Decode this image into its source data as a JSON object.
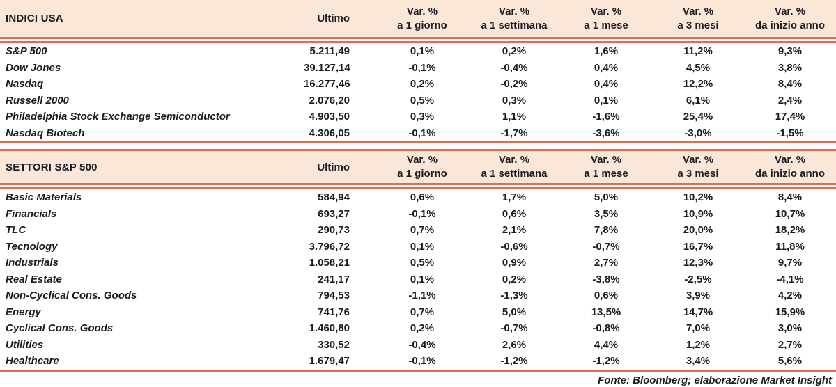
{
  "colors": {
    "header_background": "#fae7d8",
    "rule": "#e9694f",
    "text": "#1b1b22",
    "page_background": "#ffffff"
  },
  "columns": {
    "ultimo_label": "Ultimo",
    "var_label": "Var. %",
    "periods": [
      "a 1 giorno",
      "a 1 settimana",
      "a 1 mese",
      "a 3 mesi",
      "da inizio anno"
    ]
  },
  "tables": [
    {
      "title": "INDICI USA",
      "rows": [
        {
          "name": "S&P 500",
          "ultimo": "5.211,49",
          "vars": [
            "0,1%",
            "0,2%",
            "1,6%",
            "11,2%",
            "9,3%"
          ]
        },
        {
          "name": "Dow Jones",
          "ultimo": "39.127,14",
          "vars": [
            "-0,1%",
            "-0,4%",
            "0,4%",
            "4,5%",
            "3,8%"
          ]
        },
        {
          "name": "Nasdaq",
          "ultimo": "16.277,46",
          "vars": [
            "0,2%",
            "-0,2%",
            "0,4%",
            "12,2%",
            "8,4%"
          ]
        },
        {
          "name": "Russell 2000",
          "ultimo": "2.076,20",
          "vars": [
            "0,5%",
            "0,3%",
            "0,1%",
            "6,1%",
            "2,4%"
          ]
        },
        {
          "name": "Philadelphia Stock Exchange Semiconductor",
          "ultimo": "4.903,50",
          "vars": [
            "0,3%",
            "1,1%",
            "-1,6%",
            "25,4%",
            "17,4%"
          ]
        },
        {
          "name": "Nasdaq Biotech",
          "ultimo": "4.306,05",
          "vars": [
            "-0,1%",
            "-1,7%",
            "-3,6%",
            "-3,0%",
            "-1,5%"
          ]
        }
      ]
    },
    {
      "title": "SETTORI S&P 500",
      "rows": [
        {
          "name": "Basic Materials",
          "ultimo": "584,94",
          "vars": [
            "0,6%",
            "1,7%",
            "5,0%",
            "10,2%",
            "8,4%"
          ]
        },
        {
          "name": "Financials",
          "ultimo": "693,27",
          "vars": [
            "-0,1%",
            "0,6%",
            "3,5%",
            "10,9%",
            "10,7%"
          ]
        },
        {
          "name": "TLC",
          "ultimo": "290,73",
          "vars": [
            "0,7%",
            "2,1%",
            "7,8%",
            "20,0%",
            "18,2%"
          ]
        },
        {
          "name": "Tecnology",
          "ultimo": "3.796,72",
          "vars": [
            "0,1%",
            "-0,6%",
            "-0,7%",
            "16,7%",
            "11,8%"
          ]
        },
        {
          "name": "Industrials",
          "ultimo": "1.058,21",
          "vars": [
            "0,5%",
            "0,9%",
            "2,7%",
            "12,3%",
            "9,7%"
          ]
        },
        {
          "name": "Real Estate",
          "ultimo": "241,17",
          "vars": [
            "0,1%",
            "0,2%",
            "-3,8%",
            "-2,5%",
            "-4,1%"
          ]
        },
        {
          "name": "Non-Cyclical Cons. Goods",
          "ultimo": "794,53",
          "vars": [
            "-1,1%",
            "-1,3%",
            "0,6%",
            "3,9%",
            "4,2%"
          ]
        },
        {
          "name": "Energy",
          "ultimo": "741,76",
          "vars": [
            "0,7%",
            "5,0%",
            "13,5%",
            "14,7%",
            "15,9%"
          ]
        },
        {
          "name": "Cyclical Cons. Goods",
          "ultimo": "1.460,80",
          "vars": [
            "0,2%",
            "-0,7%",
            "-0,8%",
            "7,0%",
            "3,0%"
          ]
        },
        {
          "name": "Utilities",
          "ultimo": "330,52",
          "vars": [
            "-0,4%",
            "2,6%",
            "4,4%",
            "1,2%",
            "2,7%"
          ]
        },
        {
          "name": "Healthcare",
          "ultimo": "1.679,47",
          "vars": [
            "-0,1%",
            "-1,2%",
            "-1,2%",
            "3,4%",
            "5,6%"
          ]
        }
      ]
    }
  ],
  "footer": {
    "source": "Fonte: Bloomberg; elaborazione Market Insight"
  }
}
